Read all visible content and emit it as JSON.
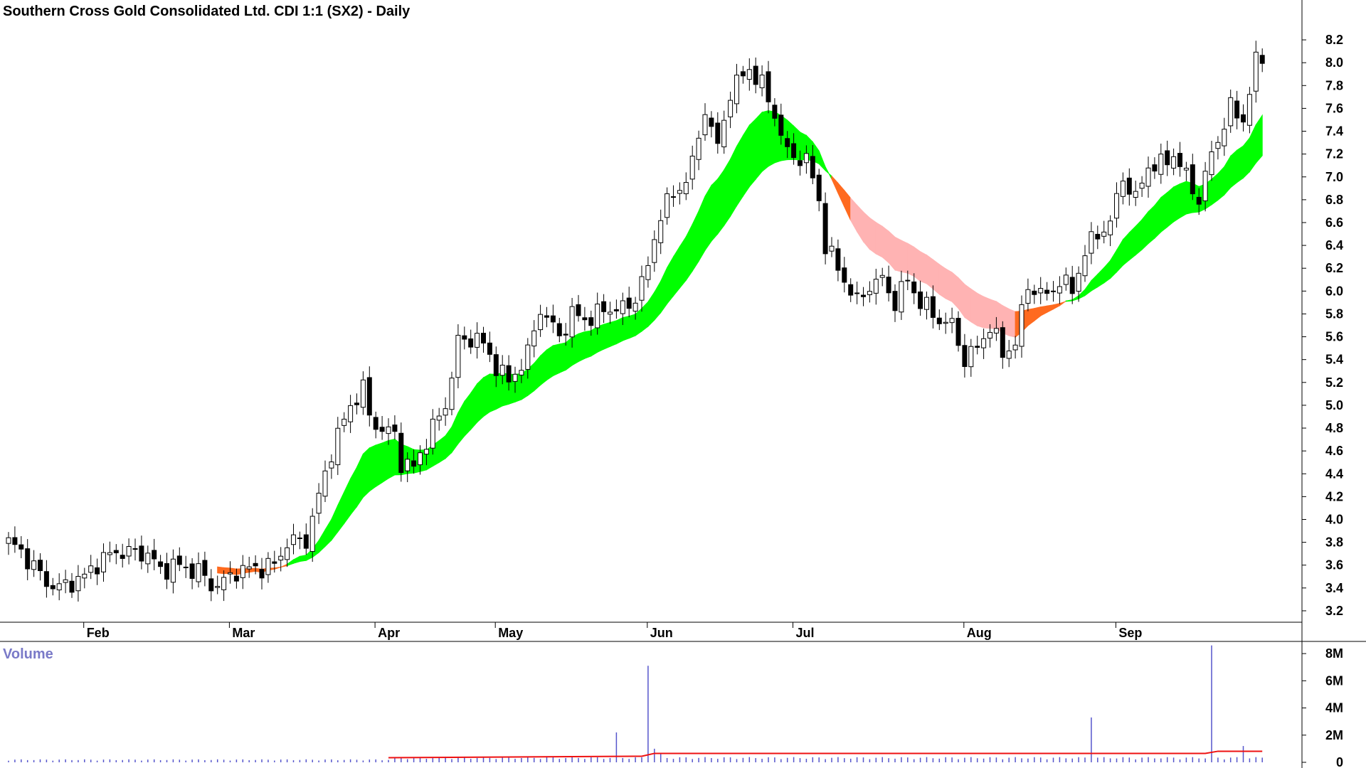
{
  "title": "Southern Cross Gold Consolidated Ltd. CDI 1:1 (SX2) - Daily",
  "volume_label": "Volume",
  "colors": {
    "band_up": "#00ff00",
    "band_down": "#ff6a1f",
    "band_down_light": "#ffb3b3",
    "volume_bar": "#5555cc",
    "volume_avg": "#ee1111",
    "candle": "#000000"
  },
  "chart_data": [
    {
      "type": "candlestick",
      "title": "Southern Cross Gold Consolidated Ltd. CDI 1:1 (SX2) - Daily",
      "grid": false,
      "y_axis_side": "right",
      "ylim": [
        3.1,
        8.3
      ],
      "y_ticks": [
        "8.2",
        "8.0",
        "7.8",
        "7.6",
        "7.4",
        "7.2",
        "7.0",
        "6.8",
        "6.6",
        "6.4",
        "6.2",
        "6.0",
        "5.8",
        "5.6",
        "5.4",
        "5.2",
        "5.0",
        "4.8",
        "4.6",
        "4.4",
        "4.2",
        "4.0",
        "3.8",
        "3.6",
        "3.4",
        "3.2"
      ],
      "x_ticks": [
        {
          "label": "Feb",
          "day": 13
        },
        {
          "label": "Mar",
          "day": 36
        },
        {
          "label": "Apr",
          "day": 59
        },
        {
          "label": "May",
          "day": 78
        },
        {
          "label": "Jun",
          "day": 102
        },
        {
          "label": "Jul",
          "day": 125
        },
        {
          "label": "Aug",
          "day": 152
        },
        {
          "label": "Sep",
          "day": 176
        }
      ],
      "close_key_points": [
        [
          0,
          3.8
        ],
        [
          2,
          3.72
        ],
        [
          6,
          3.45
        ],
        [
          8,
          3.4
        ],
        [
          12,
          3.5
        ],
        [
          14,
          3.62
        ],
        [
          17,
          3.72
        ],
        [
          22,
          3.7
        ],
        [
          24,
          3.55
        ],
        [
          26,
          3.6
        ],
        [
          30,
          3.55
        ],
        [
          32,
          3.42
        ],
        [
          34,
          3.45
        ],
        [
          36,
          3.55
        ],
        [
          40,
          3.58
        ],
        [
          42,
          3.6
        ],
        [
          44,
          3.8
        ],
        [
          47,
          3.82
        ],
        [
          49,
          4.2
        ],
        [
          51,
          4.6
        ],
        [
          54,
          5.0
        ],
        [
          56,
          5.15
        ],
        [
          57,
          4.9
        ],
        [
          59,
          4.78
        ],
        [
          61,
          4.75
        ],
        [
          62,
          4.5
        ],
        [
          64,
          4.45
        ],
        [
          66,
          4.7
        ],
        [
          69,
          5.0
        ],
        [
          71,
          5.55
        ],
        [
          74,
          5.6
        ],
        [
          77,
          5.35
        ],
        [
          79,
          5.2
        ],
        [
          82,
          5.45
        ],
        [
          84,
          5.85
        ],
        [
          87,
          5.6
        ],
        [
          89,
          5.8
        ],
        [
          91,
          5.75
        ],
        [
          95,
          5.85
        ],
        [
          98,
          5.85
        ],
        [
          101,
          6.2
        ],
        [
          103,
          6.7
        ],
        [
          106,
          6.9
        ],
        [
          108,
          7.1
        ],
        [
          110,
          7.6
        ],
        [
          112,
          7.25
        ],
        [
          114,
          7.75
        ],
        [
          117,
          7.95
        ],
        [
          119,
          7.8
        ],
        [
          121,
          7.55
        ],
        [
          123,
          7.2
        ],
        [
          126,
          7.15
        ],
        [
          128,
          6.8
        ],
        [
          129,
          6.4
        ],
        [
          131,
          6.2
        ],
        [
          134,
          5.9
        ],
        [
          136,
          6.05
        ],
        [
          138,
          6.1
        ],
        [
          140,
          5.9
        ],
        [
          142,
          6.1
        ],
        [
          144,
          5.9
        ],
        [
          147,
          5.75
        ],
        [
          149,
          5.7
        ],
        [
          151,
          5.4
        ],
        [
          153,
          5.5
        ],
        [
          155,
          5.7
        ],
        [
          157,
          5.45
        ],
        [
          159,
          5.55
        ],
        [
          161,
          6.05
        ],
        [
          164,
          5.95
        ],
        [
          166,
          6.1
        ],
        [
          168,
          6.0
        ],
        [
          170,
          6.35
        ],
        [
          172,
          6.5
        ],
        [
          174,
          6.6
        ],
        [
          176,
          7.0
        ],
        [
          178,
          6.8
        ],
        [
          180,
          7.1
        ],
        [
          182,
          7.1
        ],
        [
          184,
          7.2
        ],
        [
          186,
          7.0
        ],
        [
          188,
          6.8
        ],
        [
          190,
          7.2
        ],
        [
          193,
          7.6
        ],
        [
          195,
          7.5
        ],
        [
          197,
          8.0
        ],
        [
          198,
          8.05
        ]
      ],
      "band_fast_ema": 12,
      "band_slow_ema": 26,
      "volume": {
        "y_ticks": [
          "8M",
          "6M",
          "4M",
          "2M",
          "0"
        ],
        "ylim": [
          0,
          9000000
        ],
        "typical_volume": 250000,
        "spikes": [
          {
            "day": 96,
            "value": 2200000
          },
          {
            "day": 101,
            "value": 7100000
          },
          {
            "day": 102,
            "value": 1000000
          },
          {
            "day": 103,
            "value": 700000
          },
          {
            "day": 171,
            "value": 3300000
          },
          {
            "day": 190,
            "value": 8600000
          },
          {
            "day": 195,
            "value": 1200000
          }
        ],
        "average_line_level": 500000
      }
    }
  ]
}
